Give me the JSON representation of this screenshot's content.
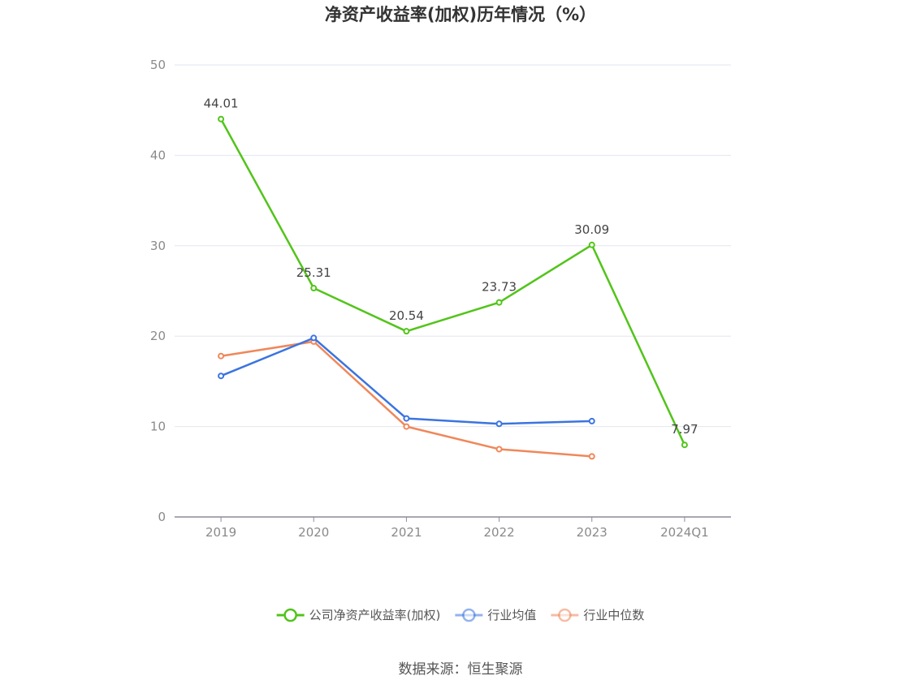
{
  "chart_data": {
    "type": "line",
    "title": "净资产收益率(加权)历年情况（%）",
    "categories": [
      "2019",
      "2020",
      "2021",
      "2022",
      "2023",
      "2024Q1"
    ],
    "ylim": [
      0,
      50
    ],
    "yticks": [
      0,
      10,
      20,
      30,
      40,
      50
    ],
    "grid": true,
    "legend_position": "bottom",
    "series": [
      {
        "name": "公司净资产收益率(加权)",
        "color": "#52c41a",
        "values": [
          44.01,
          25.31,
          20.54,
          23.73,
          30.09,
          7.97
        ],
        "labels": [
          "44.01",
          "25.31",
          "20.54",
          "23.73",
          "30.09",
          "7.97"
        ]
      },
      {
        "name": "行业均值",
        "color": "#3b74e0",
        "values": [
          15.6,
          19.8,
          10.9,
          10.3,
          10.6,
          null
        ]
      },
      {
        "name": "行业中位数",
        "color": "#f0875a",
        "values": [
          17.8,
          19.4,
          10.0,
          7.5,
          6.7,
          null
        ]
      }
    ],
    "source": "数据来源：恒生聚源"
  }
}
